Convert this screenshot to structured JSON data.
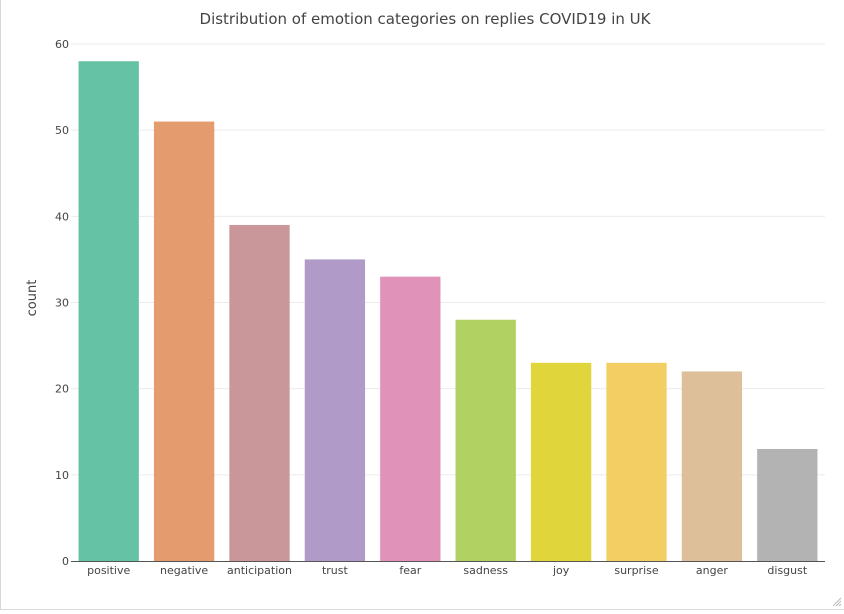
{
  "chart_data": {
    "type": "bar",
    "title": "Distribution of emotion categories on replies COVID19 in UK",
    "xlabel": "",
    "ylabel": "count",
    "categories": [
      "positive",
      "negative",
      "anticipation",
      "trust",
      "fear",
      "sadness",
      "joy",
      "surprise",
      "anger",
      "disgust"
    ],
    "values": [
      58,
      51,
      39,
      35,
      33,
      28,
      23,
      23,
      22,
      13
    ],
    "colors": [
      "#66c2a5",
      "#e49c6f",
      "#c9969a",
      "#b09ac8",
      "#e092b8",
      "#b1d163",
      "#e0d53b",
      "#f3cf63",
      "#ddbf9a",
      "#b3b3b3"
    ],
    "ylim": [
      0,
      60
    ],
    "yticks": [
      0,
      10,
      20,
      30,
      40,
      50,
      60
    ],
    "grid": true,
    "legend": "none"
  }
}
